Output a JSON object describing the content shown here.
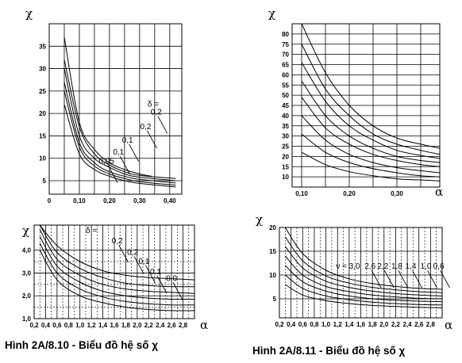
{
  "captions": {
    "left": "Hình 2A/8.10 - Biểu đồ hệ số χ",
    "right": "Hình 2A/8.11 - Biểu đồ hệ số χ"
  },
  "chart_data": [
    {
      "type": "line",
      "ylabel": "χ",
      "xlim": [
        0,
        0.44
      ],
      "ylim": [
        2,
        40
      ],
      "x_ticks": [
        "0",
        "0,10",
        "0,20",
        "0,30",
        "0,40"
      ],
      "y_ticks": [
        "5",
        "10",
        "15",
        "20",
        "25",
        "30",
        "35"
      ],
      "series": [
        {
          "x": [
            0.05,
            0.1,
            0.15,
            0.2,
            0.25,
            0.3,
            0.34
          ],
          "values": [
            37,
            18,
            12,
            9,
            7.5,
            6.5,
            6
          ]
        },
        {
          "x": [
            0.05,
            0.1,
            0.15,
            0.2,
            0.25,
            0.3,
            0.42
          ],
          "values": [
            32,
            17,
            11,
            8.5,
            7,
            6.2,
            5.5
          ]
        },
        {
          "x": [
            0.05,
            0.1,
            0.15,
            0.2,
            0.25,
            0.3,
            0.42
          ],
          "values": [
            30,
            15,
            10,
            8,
            6.5,
            5.8,
            5
          ]
        },
        {
          "x": [
            0.05,
            0.1,
            0.15,
            0.2,
            0.25,
            0.3,
            0.42
          ],
          "values": [
            27,
            13.5,
            9,
            7,
            6,
            5.3,
            4.5
          ]
        },
        {
          "x": [
            0.05,
            0.1,
            0.15,
            0.2,
            0.25,
            0.3,
            0.42
          ],
          "values": [
            25,
            12.5,
            8.3,
            6.5,
            5.5,
            4.8,
            4
          ]
        },
        {
          "x": [
            0.05,
            0.1,
            0.15,
            0.2,
            0.25,
            0.3,
            0.42
          ],
          "values": [
            22,
            11,
            7.5,
            6,
            5,
            4.4,
            3.6
          ]
        }
      ],
      "annotations": [
        {
          "text": "δ =",
          "x": 0.345,
          "y": 21.5
        },
        {
          "text": "0,2",
          "x": 0.355,
          "y": 19.8
        },
        {
          "text": "0,2",
          "x": 0.32,
          "y": 16.5
        },
        {
          "text": "0,1",
          "x": 0.26,
          "y": 13.5
        },
        {
          "text": "0,1",
          "x": 0.23,
          "y": 10.8
        },
        {
          "text": "0,05",
          "x": 0.19,
          "y": 8.8
        }
      ]
    },
    {
      "type": "line",
      "ylabel": "χ",
      "xlabel": "α",
      "xlim": [
        0.08,
        0.39
      ],
      "ylim": [
        5,
        85
      ],
      "x_ticks": [
        "0,10",
        "0,20",
        "0,30"
      ],
      "y_ticks": [
        "10",
        "15",
        "20",
        "25",
        "30",
        "35",
        "40",
        "45",
        "50",
        "55",
        "60",
        "65",
        "70",
        "75",
        "80"
      ],
      "series": [
        {
          "x": [
            0.1,
            0.15,
            0.2,
            0.25,
            0.3,
            0.35,
            0.39
          ],
          "values": [
            85,
            61,
            45,
            35,
            29,
            26,
            24
          ]
        },
        {
          "x": [
            0.1,
            0.15,
            0.2,
            0.25,
            0.3,
            0.35,
            0.39
          ],
          "values": [
            75,
            53,
            40,
            31,
            26,
            23,
            21
          ]
        },
        {
          "x": [
            0.1,
            0.15,
            0.2,
            0.25,
            0.3,
            0.35,
            0.39
          ],
          "values": [
            66,
            47,
            35,
            28,
            23,
            20.5,
            19
          ]
        },
        {
          "x": [
            0.1,
            0.15,
            0.2,
            0.25,
            0.3,
            0.35,
            0.39
          ],
          "values": [
            57,
            40,
            30,
            24,
            20,
            18,
            17
          ]
        },
        {
          "x": [
            0.1,
            0.15,
            0.2,
            0.25,
            0.3,
            0.35,
            0.39
          ],
          "values": [
            49,
            34,
            26,
            21,
            18,
            16,
            15
          ]
        },
        {
          "x": [
            0.1,
            0.15,
            0.2,
            0.25,
            0.3,
            0.35,
            0.39
          ],
          "values": [
            40,
            28,
            21,
            17,
            14.5,
            13,
            12
          ]
        },
        {
          "x": [
            0.1,
            0.15,
            0.2,
            0.25,
            0.3,
            0.35,
            0.39
          ],
          "values": [
            31,
            22,
            17,
            14,
            12,
            10.5,
            10
          ]
        },
        {
          "x": [
            0.1,
            0.15,
            0.2,
            0.25,
            0.3,
            0.35,
            0.39
          ],
          "values": [
            22,
            16,
            12.5,
            10.5,
            9,
            8.5,
            8
          ]
        }
      ]
    },
    {
      "type": "line",
      "ylabel": "χ",
      "xlabel": "α",
      "xlim": [
        0.2,
        3.0
      ],
      "ylim": [
        1.0,
        5.1
      ],
      "x_ticks": [
        "0,2",
        "0,4",
        "0,6",
        "0,8",
        "1,0",
        "1,2",
        "1,4",
        "1,6",
        "1,8",
        "2,0",
        "2,2",
        "2,4",
        "2,6",
        "2,8"
      ],
      "y_ticks": [
        "1,0",
        "2,0",
        "3,0",
        "4,0"
      ],
      "series": [
        {
          "x": [
            0.3,
            0.6,
            1.0,
            1.4,
            1.8,
            2.2,
            2.6,
            3.0
          ],
          "values": [
            5.1,
            4.2,
            3.5,
            3.1,
            2.9,
            2.8,
            2.75,
            2.7
          ]
        },
        {
          "x": [
            0.3,
            0.6,
            1.0,
            1.4,
            1.8,
            2.2,
            2.6,
            3.0
          ],
          "values": [
            5.1,
            3.9,
            3.2,
            2.8,
            2.55,
            2.45,
            2.4,
            2.4
          ]
        },
        {
          "x": [
            0.3,
            0.6,
            1.0,
            1.4,
            1.8,
            2.2,
            2.6,
            3.0
          ],
          "values": [
            4.9,
            3.6,
            2.9,
            2.5,
            2.3,
            2.2,
            2.15,
            2.1
          ]
        },
        {
          "x": [
            0.3,
            0.6,
            1.0,
            1.4,
            1.8,
            2.2,
            2.6,
            3.0
          ],
          "values": [
            4.6,
            3.3,
            2.6,
            2.2,
            2.0,
            1.9,
            1.85,
            1.85
          ]
        },
        {
          "x": [
            0.3,
            0.6,
            1.0,
            1.4,
            1.8,
            2.2,
            2.6,
            3.0
          ],
          "values": [
            4.3,
            3.0,
            2.3,
            1.95,
            1.75,
            1.65,
            1.6,
            1.6
          ]
        },
        {
          "x": [
            0.3,
            0.6,
            1.0,
            1.4,
            1.8,
            2.2,
            2.6,
            3.0
          ],
          "values": [
            4.0,
            2.7,
            2.0,
            1.7,
            1.5,
            1.4,
            1.35,
            1.35
          ]
        }
      ],
      "annotations": [
        {
          "text": "δ =",
          "x": 1.2,
          "y": 4.75
        },
        {
          "text": "0,2",
          "x": 1.65,
          "y": 4.3
        },
        {
          "text": "0,2",
          "x": 1.92,
          "y": 3.8
        },
        {
          "text": "0,1",
          "x": 2.12,
          "y": 3.4
        },
        {
          "text": "0,1",
          "x": 2.32,
          "y": 2.95
        },
        {
          "text": "0,0",
          "x": 2.6,
          "y": 2.65
        }
      ]
    },
    {
      "type": "line",
      "ylabel": "χ",
      "xlabel": "α",
      "xlim": [
        0.2,
        3.0
      ],
      "ylim": [
        1,
        20
      ],
      "x_ticks": [
        "0,2",
        "0,4",
        "0,6",
        "0,8",
        "1,0",
        "1,2",
        "1,4",
        "1,6",
        "1,8",
        "2,0",
        "2,2",
        "2,4",
        "2,6",
        "2,8"
      ],
      "y_ticks": [
        "5",
        "10",
        "15",
        "20"
      ],
      "series": [
        {
          "x": [
            0.3,
            0.6,
            1.0,
            1.4,
            1.8,
            2.2,
            2.6,
            3.0
          ],
          "values": [
            20,
            14.5,
            11,
            9.2,
            8.2,
            7.6,
            7.2,
            7
          ]
        },
        {
          "x": [
            0.3,
            0.6,
            1.0,
            1.4,
            1.8,
            2.2,
            2.6,
            3.0
          ],
          "values": [
            18,
            13,
            9.8,
            8.3,
            7.4,
            6.9,
            6.5,
            6.3
          ]
        },
        {
          "x": [
            0.3,
            0.6,
            1.0,
            1.4,
            1.8,
            2.2,
            2.6,
            3.0
          ],
          "values": [
            16,
            11.5,
            8.7,
            7.4,
            6.6,
            6.1,
            5.8,
            5.6
          ]
        },
        {
          "x": [
            0.3,
            0.6,
            1.0,
            1.4,
            1.8,
            2.2,
            2.6,
            3.0
          ],
          "values": [
            14,
            10,
            7.6,
            6.5,
            5.8,
            5.4,
            5.1,
            5
          ]
        },
        {
          "x": [
            0.3,
            0.6,
            1.0,
            1.4,
            1.8,
            2.2,
            2.6,
            3.0
          ],
          "values": [
            12,
            8.6,
            6.6,
            5.6,
            5,
            4.7,
            4.5,
            4.4
          ]
        },
        {
          "x": [
            0.3,
            0.6,
            1.0,
            1.4,
            1.8,
            2.2,
            2.6,
            3.0
          ],
          "values": [
            10,
            7.2,
            5.6,
            4.8,
            4.3,
            4,
            3.8,
            3.7
          ]
        },
        {
          "x": [
            0.3,
            0.6,
            1.0,
            1.4,
            1.8,
            2.2,
            2.6,
            3.0
          ],
          "values": [
            8,
            5.8,
            4.6,
            4,
            3.6,
            3.4,
            3.2,
            3.1
          ]
        }
      ],
      "annotations": [
        {
          "text": "ν = 3,0",
          "x": 1.38,
          "y": 11.3
        },
        {
          "text": "2,6",
          "x": 1.76,
          "y": 11.3
        },
        {
          "text": "2,2",
          "x": 1.98,
          "y": 11.3
        },
        {
          "text": "1,8",
          "x": 2.22,
          "y": 11.3
        },
        {
          "text": "1,4",
          "x": 2.46,
          "y": 11.3
        },
        {
          "text": "1,0",
          "x": 2.72,
          "y": 11.3
        },
        {
          "text": "0,6",
          "x": 2.94,
          "y": 11.3
        }
      ]
    }
  ]
}
